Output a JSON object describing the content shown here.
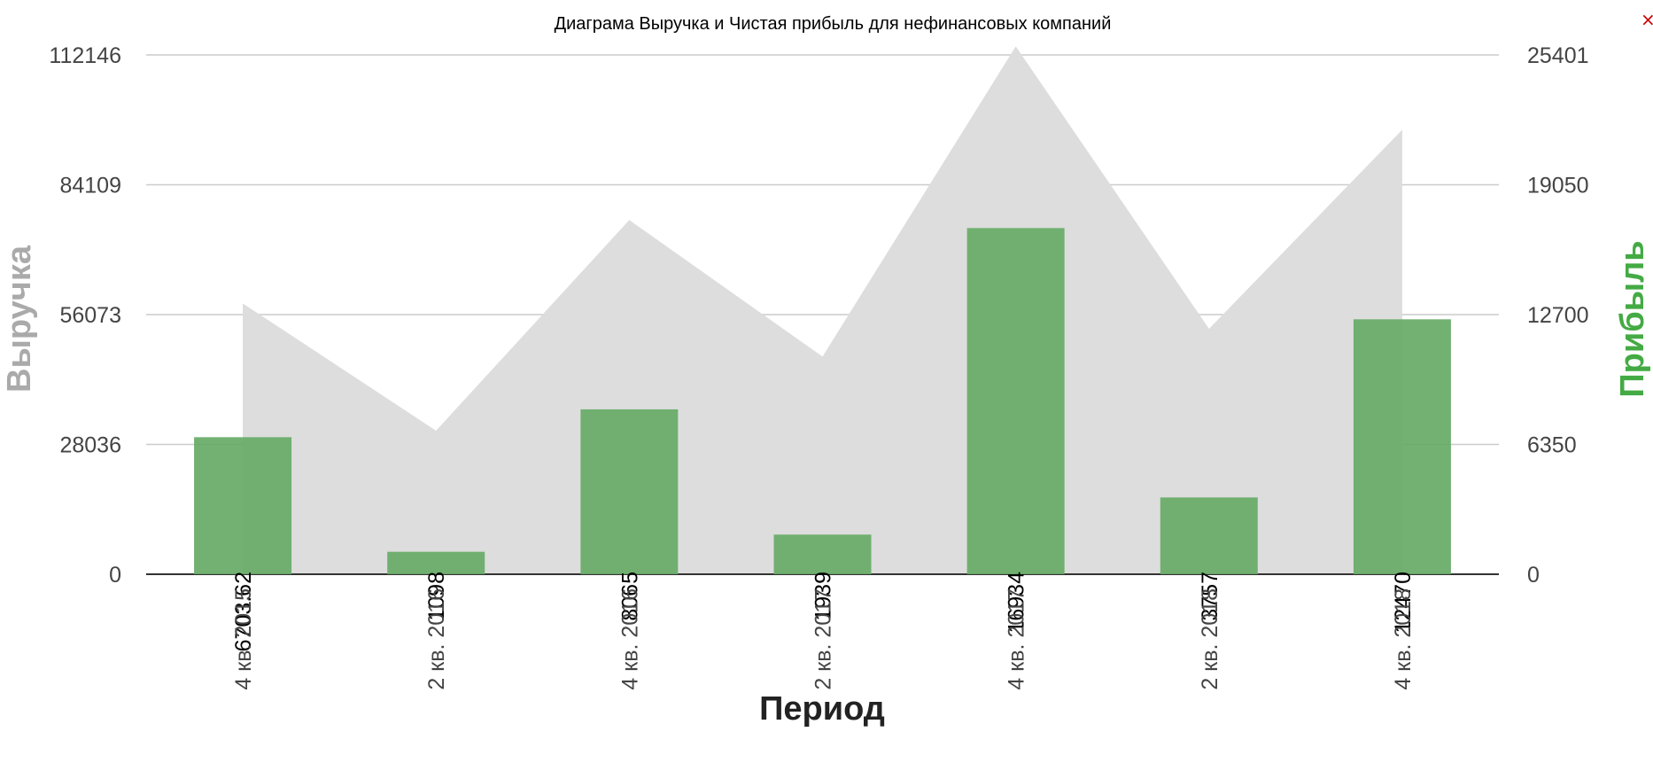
{
  "close_glyph": "×",
  "chart_data": {
    "type": "bar",
    "title": "Диаграма Выручка и Чистая прибыль для нефинансовых компаний",
    "xlabel": "Период",
    "ylabel_left": "Выручка",
    "ylabel_right": "Прибыль",
    "categories": [
      "4 кв. 2015",
      "2 кв. 2016",
      "4 кв. 2016",
      "2 кв. 2017",
      "4 кв. 2017",
      "2 кв. 2018",
      "4 кв. 2018"
    ],
    "left_axis": {
      "min": 0,
      "max": 112146,
      "ticks": [
        "0",
        "28036",
        "56073",
        "84109",
        "112146"
      ]
    },
    "right_axis": {
      "min": 0,
      "max": 25401,
      "ticks": [
        "0",
        "6350",
        "12700",
        "19050",
        "25401"
      ]
    },
    "series": [
      {
        "name": "Выручка",
        "type": "area",
        "axis": "left",
        "color": "#dddddd",
        "values": [
          58500,
          31000,
          76500,
          47000,
          114000,
          53000,
          96000
        ]
      },
      {
        "name": "Прибыль",
        "type": "bar",
        "axis": "right",
        "color": "#66aa66",
        "values": [
          6703.62,
          1098,
          8065,
          1939,
          16934,
          3757,
          12470
        ],
        "labels": [
          "6703.62",
          "1098",
          "8065",
          "1939",
          "16934",
          "3757",
          "12470"
        ]
      }
    ],
    "grid": true,
    "colors": {
      "axis_left_label": "#aaaaaa",
      "axis_right_label": "#44aa44",
      "close": "#cc0000"
    }
  }
}
